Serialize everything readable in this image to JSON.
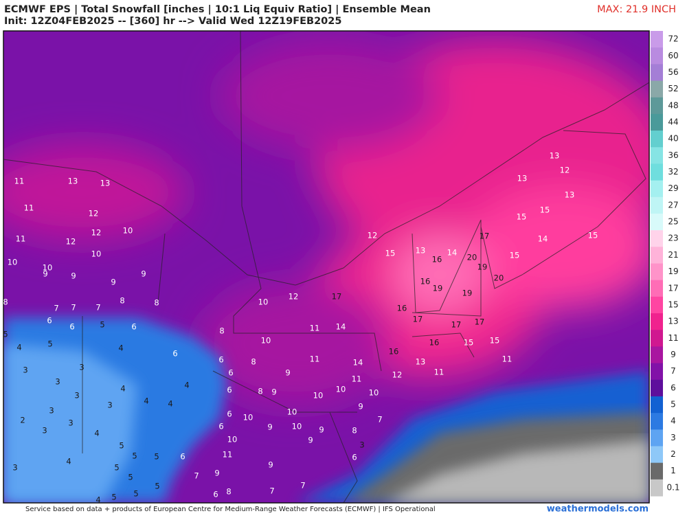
{
  "header": {
    "title": "ECMWF EPS | Total Snowfall [inches | 10:1 Liq Equiv Ratio] | Ensemble Mean",
    "subtitle": "Init: 12Z04FEB2025 -- [360] hr --> Valid Wed 12Z19FEB2025",
    "max_label": "MAX: 21.9 INCH"
  },
  "colorbar": {
    "levels": [
      72,
      60,
      56,
      52,
      48,
      44,
      40,
      36,
      32,
      29,
      27,
      25,
      23,
      21,
      19,
      17,
      15,
      13,
      11,
      9,
      7,
      6,
      5,
      4,
      3,
      2,
      1,
      0.1
    ],
    "colors": [
      "#c99be9",
      "#b98be0",
      "#a47ed6",
      "#8aa8a8",
      "#5d9999",
      "#4a9a9a",
      "#63cfcf",
      "#86e4e4",
      "#6fdede",
      "#a4f0f0",
      "#bff5f5",
      "#d8fafa",
      "#ffd3ea",
      "#ffb3d9",
      "#ff93c9",
      "#ff6db6",
      "#ff45a2",
      "#f0228e",
      "#d01890",
      "#a916a0",
      "#8212a8",
      "#5e0f9c",
      "#1261d2",
      "#2c7ae2",
      "#5ea4f2",
      "#8ec8f8",
      "#6a6a6a",
      "#c8c8c8"
    ]
  },
  "map_labels": [
    11,
    13,
    13,
    11,
    12,
    10,
    12,
    11,
    12,
    10,
    10,
    10,
    9,
    9,
    9,
    9,
    8,
    8,
    8,
    7,
    7,
    7,
    6,
    6,
    5,
    6,
    5,
    4,
    5,
    4,
    6,
    3,
    3,
    3,
    4,
    4,
    3,
    4,
    4,
    3,
    2,
    3,
    3,
    3,
    4,
    5,
    5,
    5,
    4,
    3,
    5,
    5,
    5,
    5,
    4,
    5,
    8,
    10,
    6,
    8,
    6,
    9,
    6,
    8,
    9,
    10,
    10,
    6,
    10,
    10,
    6,
    10,
    9,
    10,
    9,
    9,
    11,
    6,
    9,
    7,
    9,
    7,
    7,
    6,
    8,
    9,
    7,
    8,
    3,
    6,
    11,
    10,
    14,
    16,
    11,
    11,
    14,
    12,
    13,
    11,
    11,
    16,
    15,
    15,
    17,
    17,
    17,
    16,
    12,
    17,
    10,
    12,
    15,
    13,
    16,
    14,
    20,
    19,
    17,
    20,
    15,
    14,
    15,
    16,
    19,
    19,
    13,
    12,
    13,
    13,
    15,
    15
  ],
  "footer": {
    "credit": "Service based on data + products of European Centre for Medium-Range Weather Forecasts (ECMWF) | IFS Operational",
    "site": "weathermodels.com"
  }
}
